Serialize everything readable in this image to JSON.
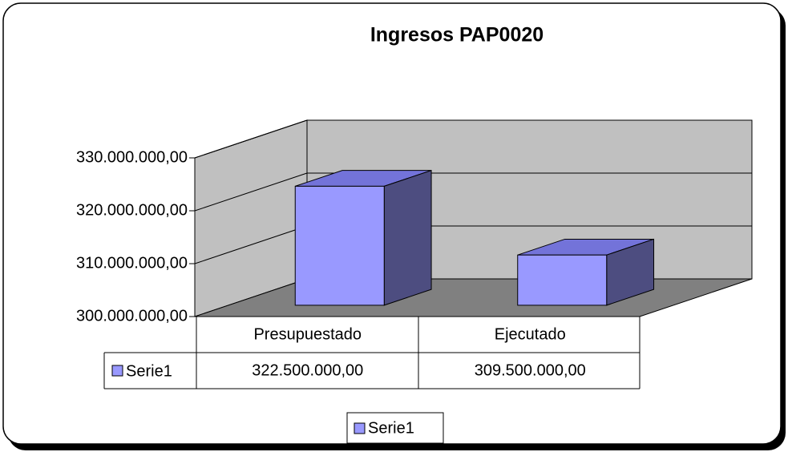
{
  "chart_data": {
    "type": "bar3d",
    "title": "Ingresos PAP0020",
    "categories": [
      "Presupuestado",
      "Ejecutado"
    ],
    "series": [
      {
        "name": "Serie1",
        "color": "#9999ff",
        "values": [
          322500000,
          309500000
        ],
        "value_labels": [
          "322.500.000,00",
          "309.500.000,00"
        ]
      }
    ],
    "ylim": [
      300000000,
      330000000
    ],
    "yticks": [
      {
        "value": 300000000,
        "label": "300.000.000,00"
      },
      {
        "value": 310000000,
        "label": "310.000.000,00"
      },
      {
        "value": 320000000,
        "label": "320.000.000,00"
      },
      {
        "value": 330000000,
        "label": "330.000.000,00"
      }
    ],
    "grid": true,
    "legend": "bottom"
  }
}
